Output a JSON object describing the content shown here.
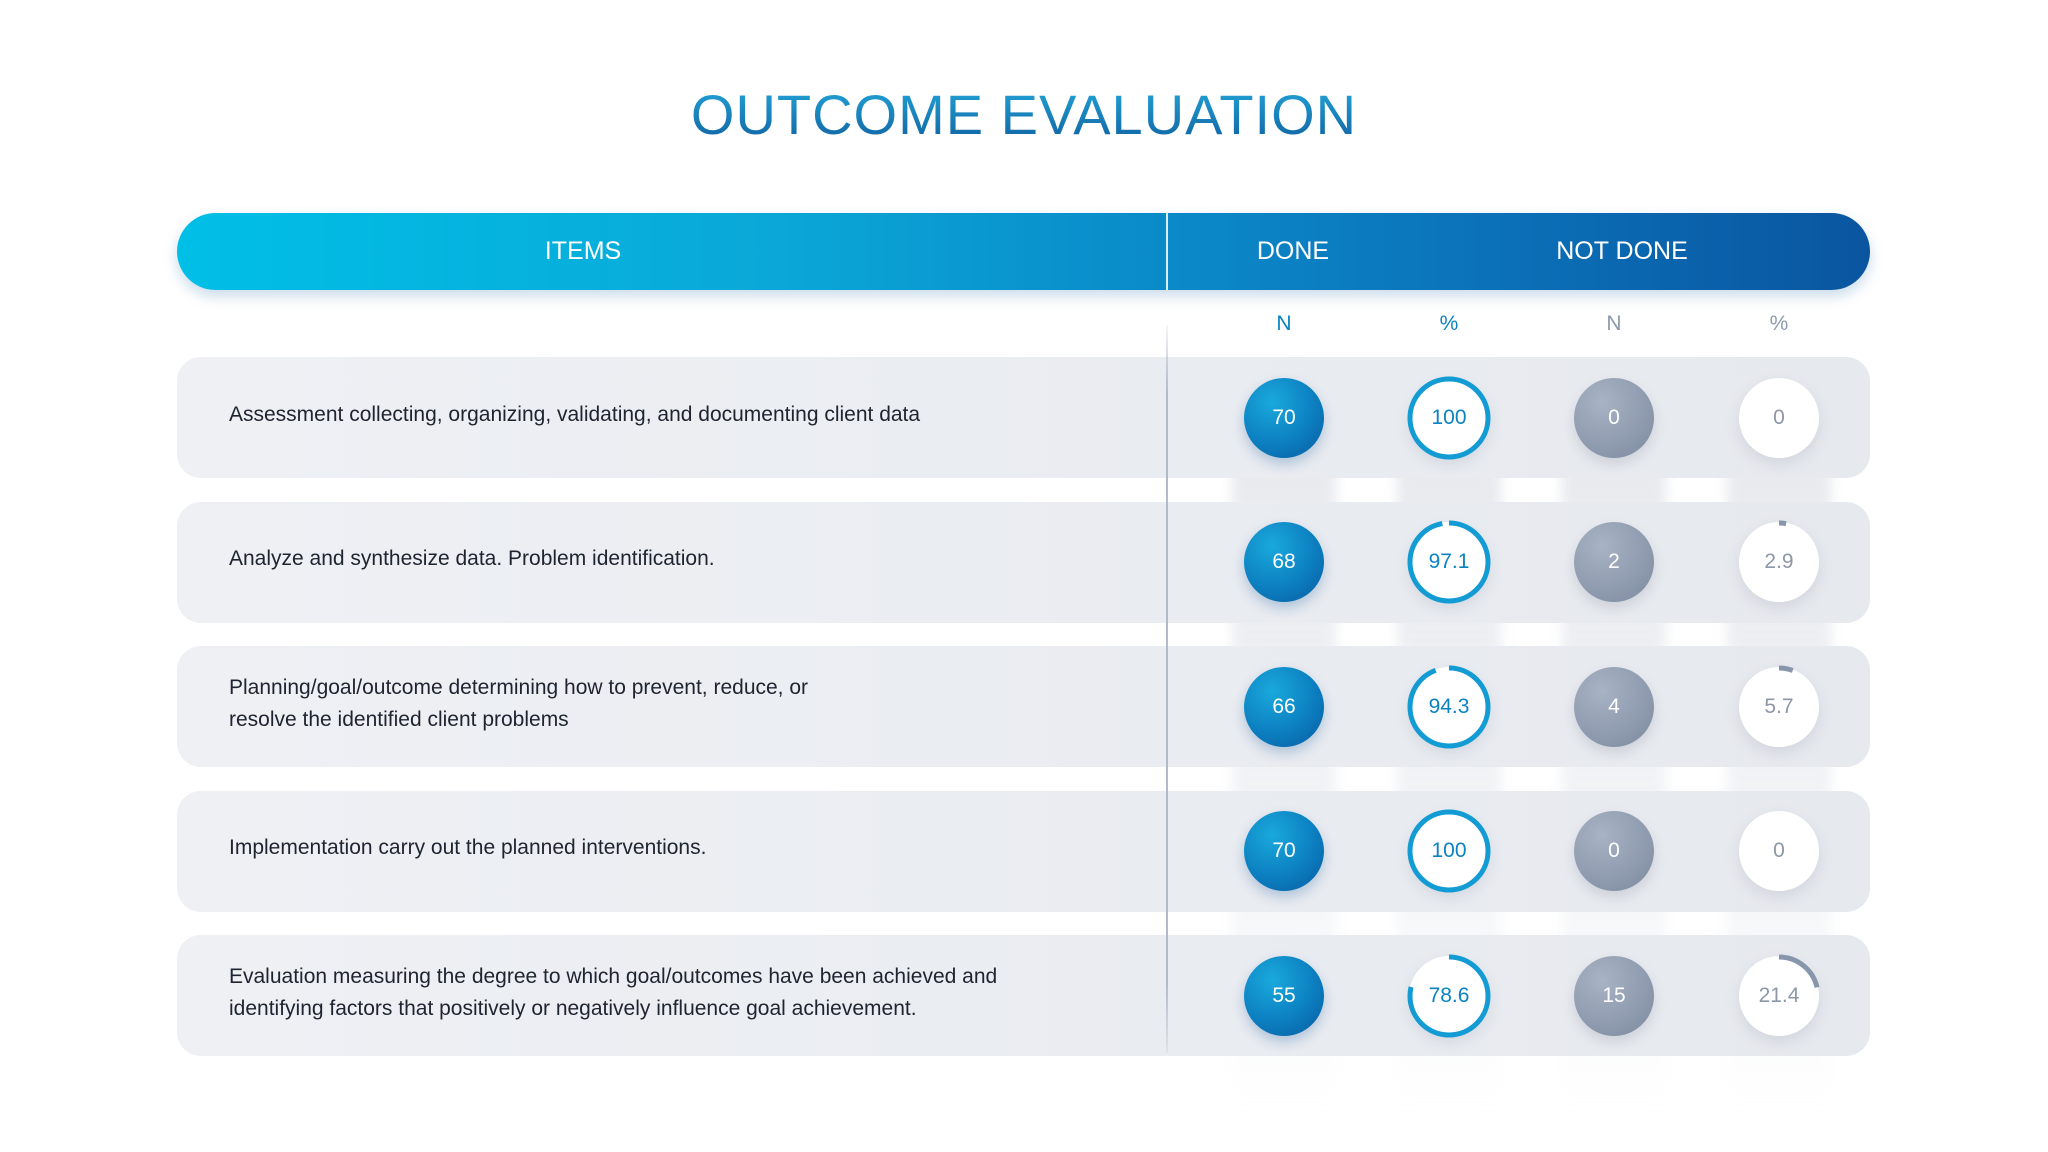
{
  "title": "OUTCOME EVALUATION",
  "header": {
    "items_label": "ITEMS",
    "done_label": "DONE",
    "not_done_label": "NOT DONE"
  },
  "subheaders": {
    "done_n": "N",
    "done_pct": "%",
    "not_done_n": "N",
    "not_done_pct": "%"
  },
  "colors": {
    "done_accent": "#0b83c2",
    "done_ring": "#139bd4",
    "not_done_accent": "#8e9aae",
    "not_done_ring": "#8896ab"
  },
  "chart_data": {
    "type": "table",
    "title": "OUTCOME EVALUATION",
    "columns": [
      "Items",
      "Done N",
      "Done %",
      "Not Done N",
      "Not Done %"
    ],
    "rows": [
      {
        "item": "Assessment collecting, organizing, validating, and documenting client data",
        "done_n": 70,
        "done_pct": 100,
        "not_done_n": 0,
        "not_done_pct": 0
      },
      {
        "item": "Analyze and synthesize data. Problem identification.",
        "done_n": 68,
        "done_pct": 97.1,
        "not_done_n": 2,
        "not_done_pct": 2.9
      },
      {
        "item": "Planning/goal/outcome determining how to prevent, reduce, or\nresolve the identified client problems",
        "done_n": 66,
        "done_pct": 94.3,
        "not_done_n": 4,
        "not_done_pct": 5.7
      },
      {
        "item": "Implementation carry out the planned interventions.",
        "done_n": 70,
        "done_pct": 100,
        "not_done_n": 0,
        "not_done_pct": 0
      },
      {
        "item": "Evaluation measuring the degree to which goal/outcomes have been achieved and\nidentifying factors that positively or negatively influence goal achievement.",
        "done_n": 55,
        "done_pct": 78.6,
        "not_done_n": 15,
        "not_done_pct": 21.4
      }
    ]
  }
}
